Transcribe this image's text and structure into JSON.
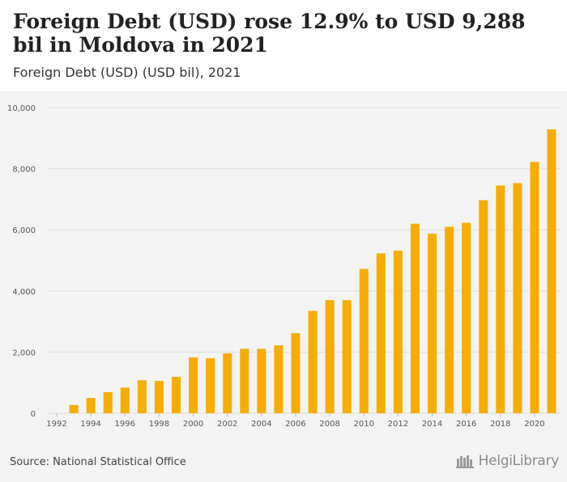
{
  "header": {
    "title": "Foreign Debt (USD) rose 12.9% to USD 9,288 bil in Moldova in 2021",
    "subtitle": "Foreign Debt (USD) (USD bil), 2021"
  },
  "footer": {
    "source": "Source: National Statistical Office",
    "brand": "HelgiLibrary"
  },
  "colors": {
    "bar": "#f7ac00",
    "grid": "#dddddd",
    "axis_text": "#555555",
    "panel": "#f3f3f3"
  },
  "chart_data": {
    "type": "bar",
    "title": "Foreign Debt (USD) rose 12.9% to USD 9,288 bil in Moldova in 2021",
    "subtitle": "Foreign Debt (USD) (USD bil), 2021",
    "xlabel": "",
    "ylabel": "",
    "ylim": [
      0,
      10000
    ],
    "yticks": [
      0,
      2000,
      4000,
      6000,
      8000,
      10000
    ],
    "ytick_labels": [
      "0",
      "2,000",
      "4,000",
      "6,000",
      "8,000",
      "10,000"
    ],
    "grid": true,
    "legend": "none",
    "categories": [
      1992,
      1993,
      1994,
      1995,
      1996,
      1997,
      1998,
      1999,
      2000,
      2001,
      2002,
      2003,
      2004,
      2005,
      2006,
      2007,
      2008,
      2009,
      2010,
      2011,
      2012,
      2013,
      2014,
      2015,
      2016,
      2017,
      2018,
      2019,
      2020,
      2021
    ],
    "xtick_labels": [
      "1992",
      "1994",
      "1996",
      "1998",
      "2000",
      "2002",
      "2004",
      "2006",
      "2008",
      "2010",
      "2012",
      "2014",
      "2016",
      "2018",
      "2020"
    ],
    "values": [
      null,
      270,
      500,
      690,
      840,
      1080,
      1060,
      1190,
      1830,
      1800,
      1960,
      2110,
      2110,
      2220,
      2620,
      3350,
      3700,
      3700,
      4720,
      5230,
      5320,
      6200,
      5870,
      6100,
      6230,
      6970,
      7450,
      7530,
      8220,
      9288
    ]
  }
}
